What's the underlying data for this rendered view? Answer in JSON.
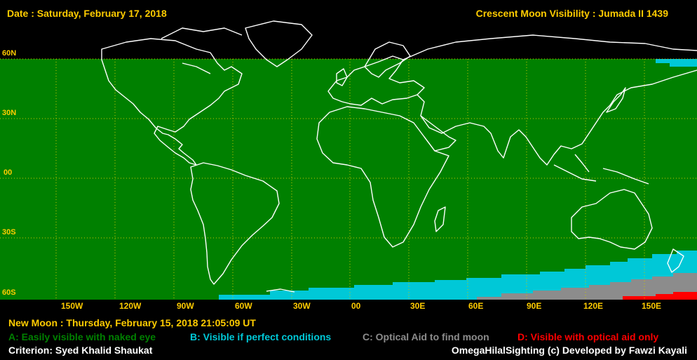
{
  "header": {
    "date_text": "Date : Saturday, February 17, 2018",
    "title_text": "Crescent Moon Visibility : Jumada II  1439"
  },
  "map": {
    "latitude_labels": [
      "60N",
      "30N",
      "00",
      "30S",
      "60S"
    ],
    "longitude_labels": [
      "150W",
      "120W",
      "90W",
      "60W",
      "30W",
      "00",
      "30E",
      "60E",
      "90E",
      "120E",
      "150E"
    ],
    "zone_colors": {
      "A": "#008000",
      "B": "#00c8d7",
      "C": "#8c8c8c",
      "D": "#ff0000"
    },
    "coastline_color": "#ffffff",
    "grid_color": "#c8c800",
    "label_color": "#ffcc00"
  },
  "footer": {
    "new_moon_text": "New Moon : Thursday, February 15, 2018  21:05:09  UT",
    "legend": {
      "a": "A: Easily visible with naked eye",
      "b": "B: Visible if perfect conditions",
      "c": "C: Optical Aid to find moon",
      "d": "D: Visible with optical aid only"
    },
    "criterion_text": "Criterion: Syed Khalid Shaukat",
    "credit_text": "OmegaHilalSighting  (c)  Developed by Fawzi Kayali"
  }
}
